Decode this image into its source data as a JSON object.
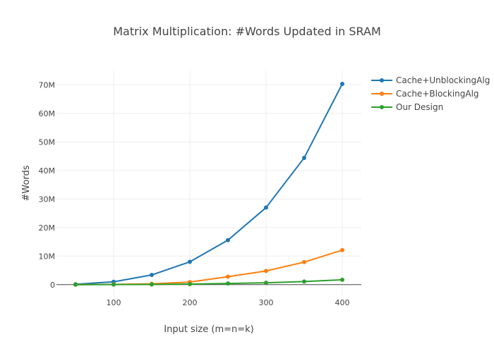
{
  "chart_data": {
    "type": "line",
    "title": "Matrix Multiplication: #Words Updated in SRAM",
    "xlabel": "Input size (m=n=k)",
    "ylabel": "#Words",
    "x": [
      50,
      100,
      150,
      200,
      250,
      300,
      350,
      400
    ],
    "xlim": [
      25,
      425
    ],
    "ylim": [
      -4000000,
      75000000
    ],
    "x_ticks": [
      100,
      200,
      300,
      400
    ],
    "x_tick_labels": [
      "100",
      "200",
      "300",
      "400"
    ],
    "y_ticks": [
      0,
      10000000,
      20000000,
      30000000,
      40000000,
      50000000,
      60000000,
      70000000
    ],
    "y_tick_labels": [
      "0",
      "10M",
      "20M",
      "30M",
      "40M",
      "50M",
      "60M",
      "70M"
    ],
    "grid": true,
    "legend_position": "top-right",
    "series": [
      {
        "name": "Cache+UnblockingAlg",
        "color": "#1f77b4",
        "values": [
          150000,
          1000000,
          3400000,
          8000000,
          15600000,
          27000000,
          44400000,
          70300000
        ]
      },
      {
        "name": "Cache+BlockingAlg",
        "color": "#ff7f0e",
        "values": [
          0,
          100000,
          300000,
          900000,
          2800000,
          4800000,
          7900000,
          12100000
        ]
      },
      {
        "name": "Our Design",
        "color": "#2ca02c",
        "values": [
          0,
          30000,
          80000,
          200000,
          400000,
          650000,
          1100000,
          1700000
        ]
      }
    ]
  }
}
